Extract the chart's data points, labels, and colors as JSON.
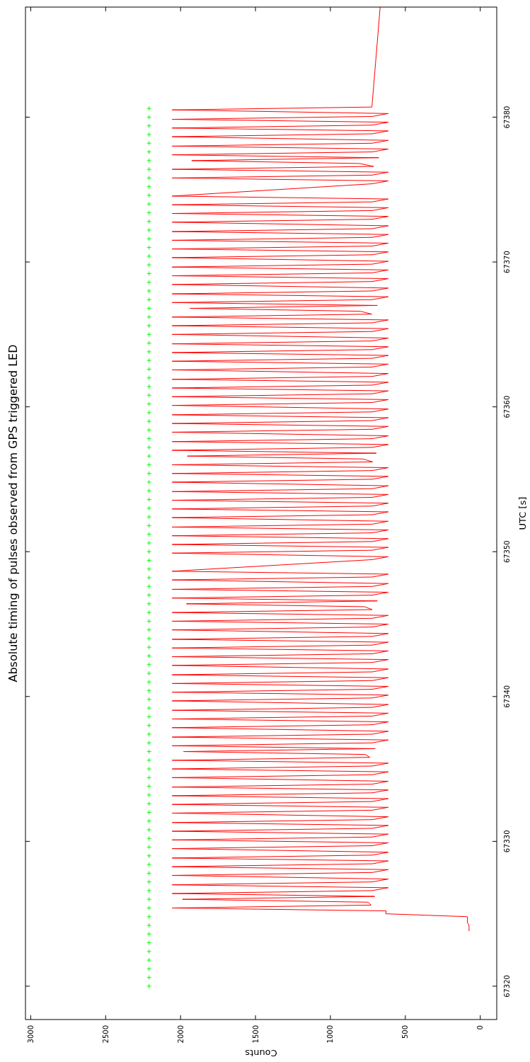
{
  "chart_data": {
    "type": "line",
    "title": "Absolute timing of pulses observed from GPS triggered LED",
    "xlabel": "Counts",
    "ylabel": "UTC [s]",
    "xlim": [
      3035,
      -110
    ],
    "ylim": [
      67317.7,
      67387.6
    ],
    "xticks": [
      3000,
      2500,
      2000,
      1500,
      1000,
      500,
      0
    ],
    "yticks": [
      67320,
      67330,
      67340,
      67350,
      67360,
      67370,
      67380
    ],
    "series": [
      {
        "color": "#ff0000",
        "values": [
          67323.8,
          67324.0,
          67324.2,
          67324.4,
          67324.6,
          67324.8,
          67325.0,
          67325.2,
          67325.4,
          67325.6,
          67325.8,
          67326.0,
          67326.2,
          67326.4,
          67326.6,
          67326.8,
          67327.0,
          67327.2,
          67327.4,
          67327.65,
          67327.85,
          67328.05,
          67328.25,
          67328.45,
          67328.65,
          67328.85,
          67329.05,
          67329.25,
          67329.5,
          67329.7,
          67329.9,
          67330.1,
          67330.3,
          67330.5,
          67330.7,
          67330.9,
          67331.1,
          67331.3,
          67331.5,
          67331.7,
          67331.95,
          67332.15,
          67332.35,
          67332.55,
          67332.75,
          67332.95,
          67333.15,
          67333.35,
          67333.55,
          67333.75,
          67333.95,
          67334.15,
          67334.4,
          67334.6,
          67334.8,
          67335.0,
          67335.2,
          67335.4,
          67335.6,
          67335.8,
          67336.0,
          67336.2,
          67336.4,
          67336.6,
          67336.8,
          67337.0,
          67337.2,
          67337.4,
          67337.6,
          67337.85,
          67338.05,
          67338.25,
          67338.45,
          67338.65,
          67338.85,
          67339.05,
          67339.25,
          67339.45,
          67339.7,
          67339.9,
          67340.1,
          67340.3,
          67340.5,
          67340.7,
          67340.9,
          67341.1,
          67341.3,
          67341.5,
          67341.7,
          67341.9,
          67342.15,
          67342.35,
          67342.55,
          67342.75,
          67342.95,
          67343.15,
          67343.35,
          67343.55,
          67343.75,
          67343.95,
          67344.15,
          67344.35,
          67344.6,
          67344.8,
          67345.0,
          67345.2,
          67345.4,
          67345.6,
          67345.8,
          67346.0,
          67346.2,
          67346.4,
          67346.6,
          67346.8,
          67347.0,
          67347.2,
          67347.4,
          67347.6,
          67347.8,
          67348.05,
          67348.25,
          67348.45,
          67348.65,
          67349.45,
          67349.65,
          67349.9,
          67350.1,
          67350.3,
          67350.5,
          67350.7,
          67350.9,
          67351.1,
          67351.3,
          67351.5,
          67351.7,
          67351.9,
          67352.1,
          67352.35,
          67352.55,
          67352.75,
          67352.95,
          67353.15,
          67353.35,
          67353.55,
          67353.75,
          67353.95,
          67354.15,
          67354.35,
          67354.55,
          67354.8,
          67355.0,
          67355.2,
          67355.4,
          67355.6,
          67355.8,
          67356.0,
          67356.2,
          67356.4,
          67356.6,
          67356.8,
          67357.0,
          67357.2,
          67357.4,
          67357.6,
          67357.8,
          67358.0,
          67358.25,
          67358.45,
          67358.65,
          67358.85,
          67359.05,
          67359.25,
          67359.45,
          67359.65,
          67359.85,
          67360.1,
          67360.3,
          67360.5,
          67360.7,
          67360.9,
          67361.1,
          67361.3,
          67361.5,
          67361.7,
          67361.9,
          67362.1,
          67362.3,
          67362.55,
          67362.75,
          67362.95,
          67363.15,
          67363.35,
          67363.55,
          67363.75,
          67363.95,
          67364.15,
          67364.35,
          67364.55,
          67364.75,
          67365.0,
          67365.2,
          67365.4,
          67365.6,
          67365.8,
          67366.0,
          67366.2,
          67366.4,
          67366.6,
          67366.8,
          67367.0,
          67367.2,
          67367.4,
          67367.6,
          67367.8,
          67368.0,
          67368.2,
          67368.45,
          67368.65,
          67368.85,
          67369.05,
          67369.25,
          67369.45,
          67369.65,
          67369.85,
          67370.05,
          67370.3,
          67370.5,
          67370.7,
          67370.9,
          67371.1,
          67371.3,
          67371.5,
          67371.7,
          67371.9,
          67372.1,
          67372.3,
          67372.5,
          67372.75,
          67372.95,
          67373.15,
          67373.35,
          67373.55,
          67373.75,
          67373.95,
          67374.15,
          67374.35,
          67374.55,
          67375.4,
          67375.6,
          67375.8,
          67376.0,
          67376.2,
          67376.4,
          67376.6,
          67376.8,
          67377.0,
          67377.2,
          67377.4,
          67377.6,
          67377.8,
          67378.0,
          67378.2,
          67378.4,
          67378.65,
          67378.85,
          67379.05,
          67379.25,
          67379.45,
          67379.65,
          67379.85,
          67380.05,
          67380.25,
          67380.5,
          67380.7,
          67387.6
        ],
        "x": [
          75,
          75,
          75,
          86,
          86,
          86,
          631,
          628,
          2056,
          729,
          748,
          1987,
          705,
          2056,
          721,
          614,
          2056,
          721,
          614,
          2056,
          721,
          614,
          2056,
          721,
          614,
          2056,
          721,
          614,
          2056,
          721,
          614,
          2056,
          721,
          614,
          2056,
          721,
          614,
          2056,
          721,
          614,
          2056,
          721,
          614,
          2056,
          721,
          614,
          2056,
          721,
          614,
          2056,
          721,
          614,
          2056,
          721,
          614,
          2056,
          721,
          614,
          2056,
          737,
          768,
          1980,
          701,
          2056,
          721,
          614,
          2056,
          721,
          614,
          2056,
          721,
          614,
          2056,
          721,
          614,
          2056,
          721,
          614,
          2056,
          721,
          614,
          2056,
          721,
          614,
          2056,
          721,
          614,
          2056,
          721,
          614,
          2056,
          721,
          614,
          2056,
          721,
          614,
          2056,
          721,
          614,
          2056,
          721,
          614,
          2056,
          721,
          614,
          2056,
          721,
          614,
          2056,
          721,
          772,
          1961,
          687,
          2056,
          721,
          614,
          2056,
          721,
          614,
          2056,
          721,
          614,
          2056,
          721,
          614,
          2056,
          721,
          614,
          2056,
          721,
          614,
          2056,
          721,
          614,
          2056,
          721,
          614,
          2056,
          721,
          614,
          2056,
          721,
          614,
          2056,
          721,
          614,
          2056,
          721,
          614,
          2056,
          721,
          614,
          2056,
          721,
          614,
          2056,
          718,
          784,
          1955,
          693,
          2056,
          721,
          614,
          2056,
          721,
          614,
          2056,
          721,
          614,
          2056,
          721,
          614,
          2056,
          721,
          614,
          2056,
          721,
          614,
          2056,
          721,
          614,
          2056,
          721,
          614,
          2056,
          721,
          614,
          2056,
          721,
          614,
          2056,
          721,
          614,
          2056,
          721,
          614,
          2056,
          721,
          614,
          2056,
          721,
          614,
          2056,
          721,
          614,
          2056,
          724,
          800,
          1938,
          687,
          2056,
          721,
          614,
          2056,
          721,
          614,
          2056,
          721,
          614,
          2056,
          721,
          614,
          2056,
          721,
          614,
          2056,
          721,
          614,
          2056,
          721,
          614,
          2056,
          721,
          614,
          2056,
          721,
          614,
          2056,
          721,
          614,
          2056,
          721,
          614,
          2056,
          721,
          614,
          2056,
          721,
          614,
          2056,
          721,
          614,
          2056,
          712,
          805,
          1926,
          677,
          2056,
          721,
          614,
          2056,
          721,
          614,
          2056,
          721,
          614,
          2056,
          721,
          614,
          2056,
          721,
          614,
          2056,
          723,
          668
        ]
      },
      {
        "type": "scatter",
        "marker": "cross",
        "color": "#00ff00",
        "values": [
          67320,
          67320.6,
          67321.2,
          67321.8,
          67322.4,
          67323,
          67323.6,
          67324.2,
          67324.8,
          67325.4,
          67326,
          67326.6,
          67327.2,
          67327.8,
          67328.4,
          67329,
          67329.6,
          67330.2,
          67330.8,
          67331.4,
          67332,
          67332.6,
          67333.2,
          67333.8,
          67334.4,
          67335,
          67335.6,
          67336.2,
          67336.8,
          67337.4,
          67338,
          67338.6,
          67339.2,
          67339.8,
          67340.4,
          67341,
          67341.6,
          67342.2,
          67342.8,
          67343.4,
          67344,
          67344.6,
          67345.2,
          67345.8,
          67346.4,
          67347,
          67347.6,
          67348.2,
          67348.8,
          67349.4,
          67350,
          67350.6,
          67351.2,
          67351.8,
          67352.4,
          67353,
          67353.6,
          67354.2,
          67354.8,
          67355.4,
          67356,
          67356.6,
          67357.2,
          67357.8,
          67358.4,
          67359,
          67359.6,
          67360.2,
          67360.8,
          67361.4,
          67362,
          67362.6,
          67363.2,
          67363.8,
          67364.4,
          67365,
          67365.6,
          67366.2,
          67366.8,
          67367.4,
          67368,
          67368.6,
          67369.2,
          67369.8,
          67370.4,
          67371,
          67371.6,
          67372.2,
          67372.8,
          67373.4,
          67374,
          67374.6,
          67375.2,
          67375.8,
          67376.4,
          67377,
          67377.6,
          67378.2,
          67378.8,
          67379.4,
          67380,
          67380.6
        ],
        "x": [
          2210,
          2210,
          2210,
          2210,
          2210,
          2210,
          2210,
          2210,
          2210,
          2210,
          2210,
          2210,
          2210,
          2210,
          2210,
          2210,
          2210,
          2210,
          2210,
          2210,
          2210,
          2210,
          2210,
          2210,
          2210,
          2210,
          2210,
          2210,
          2210,
          2210,
          2210,
          2210,
          2210,
          2210,
          2210,
          2210,
          2210,
          2210,
          2210,
          2210,
          2210,
          2210,
          2210,
          2210,
          2210,
          2210,
          2210,
          2210,
          2210,
          2210,
          2210,
          2210,
          2210,
          2210,
          2210,
          2210,
          2210,
          2210,
          2210,
          2210,
          2210,
          2210,
          2210,
          2210,
          2210,
          2210,
          2210,
          2210,
          2210,
          2210,
          2210,
          2210,
          2210,
          2210,
          2210,
          2210,
          2210,
          2210,
          2210,
          2210,
          2210,
          2210,
          2210,
          2210,
          2210,
          2210,
          2210,
          2210,
          2210,
          2210,
          2210,
          2210,
          2210,
          2210,
          2210,
          2210,
          2210,
          2210,
          2210,
          2210,
          2210,
          2210
        ]
      }
    ]
  }
}
